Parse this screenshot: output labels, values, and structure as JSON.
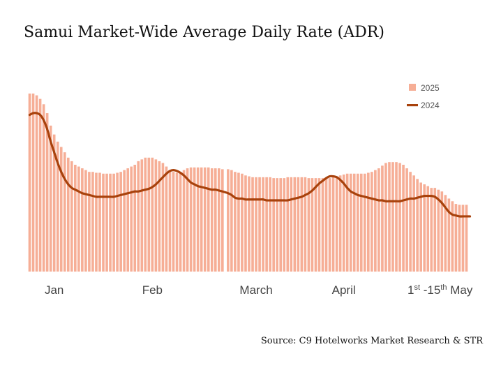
{
  "title": "Samui Market-Wide Average Daily Rate (ADR)",
  "source": "Source: C9 Hotelworks Market Research & STR",
  "chart_data": {
    "type": "bar",
    "series": [
      {
        "name": "2025",
        "type": "bar",
        "color": "#F6AE96",
        "values": [
          100,
          100,
          99,
          97,
          94,
          89,
          82,
          77,
          73,
          70,
          67,
          64,
          62,
          60,
          59,
          58,
          57,
          56,
          56,
          55.5,
          55.5,
          55,
          55,
          55,
          55,
          55.5,
          56,
          57,
          58,
          59,
          60,
          62,
          63,
          64,
          64,
          64,
          63,
          62,
          61,
          59,
          57,
          56,
          55.5,
          56,
          57,
          58,
          58.5,
          58.5,
          58.5,
          58.5,
          58.5,
          58.5,
          58,
          58,
          58,
          57.5,
          57.5,
          57,
          56,
          55.5,
          55,
          54,
          53.5,
          53,
          53,
          53,
          53,
          53,
          53,
          52.5,
          52.5,
          52.5,
          52.5,
          53,
          53,
          53,
          53,
          53,
          53,
          52.5,
          52.5,
          52.5,
          52.5,
          52.5,
          52.5,
          52.5,
          53,
          53.5,
          54,
          54.5,
          55,
          55,
          55,
          55,
          55,
          55,
          55.5,
          56,
          57,
          58,
          59.5,
          61,
          61.5,
          61.5,
          61.5,
          61,
          60,
          58,
          56,
          54,
          52,
          50,
          49,
          48,
          47,
          47,
          46,
          45,
          43,
          41,
          39.5,
          38,
          37.5,
          37.5,
          37.5
        ]
      },
      {
        "name": "2024",
        "type": "line",
        "color": "#A8420C",
        "values": [
          88,
          89,
          89,
          88,
          85,
          80,
          73,
          67,
          61,
          56,
          52,
          49,
          47,
          46,
          45,
          44,
          43.5,
          43,
          42.5,
          42,
          42,
          42,
          42,
          42,
          42,
          42.5,
          43,
          43.5,
          44,
          44.5,
          45,
          45,
          45.5,
          46,
          46.5,
          47.5,
          49,
          51,
          53,
          55,
          56.5,
          57,
          56.5,
          55.5,
          54,
          52,
          50,
          49,
          48,
          47.5,
          47,
          46.5,
          46,
          46,
          45.5,
          45,
          44,
          43,
          41.5,
          41,
          41,
          40.5,
          40.5,
          40.5,
          40.5,
          40.5,
          40.5,
          40,
          40,
          40,
          40,
          40,
          40,
          40,
          40.5,
          41,
          41.5,
          42,
          43,
          44,
          45.5,
          47.5,
          49.5,
          51,
          52.5,
          53.5,
          53.5,
          53,
          51.5,
          49.5,
          47,
          45,
          44,
          43,
          42.5,
          42,
          41.5,
          41,
          40.5,
          40,
          40,
          39.5,
          39.5,
          39.5,
          39.5,
          39.5,
          40,
          40.5,
          41,
          41,
          41.5,
          42,
          42.5,
          42.5,
          42.5,
          42,
          40.5,
          38.5,
          36,
          33.5,
          32,
          31.5,
          31,
          31,
          31,
          31
        ]
      }
    ],
    "month_labels": [
      {
        "text": "Jan",
        "index": 7
      },
      {
        "text": "Feb",
        "index": 35
      },
      {
        "text": "March",
        "index": 64
      },
      {
        "text": "April",
        "index": 89
      },
      {
        "text": "1",
        "index": 113,
        "sup": "st",
        "text_after": " -15",
        "sup2": "th",
        "text_end": " May"
      }
    ],
    "gap_after_index": 55,
    "ylim": [
      0,
      110
    ],
    "xlabel": "",
    "ylabel": "",
    "grid": false,
    "legend_placement": "top-right"
  }
}
